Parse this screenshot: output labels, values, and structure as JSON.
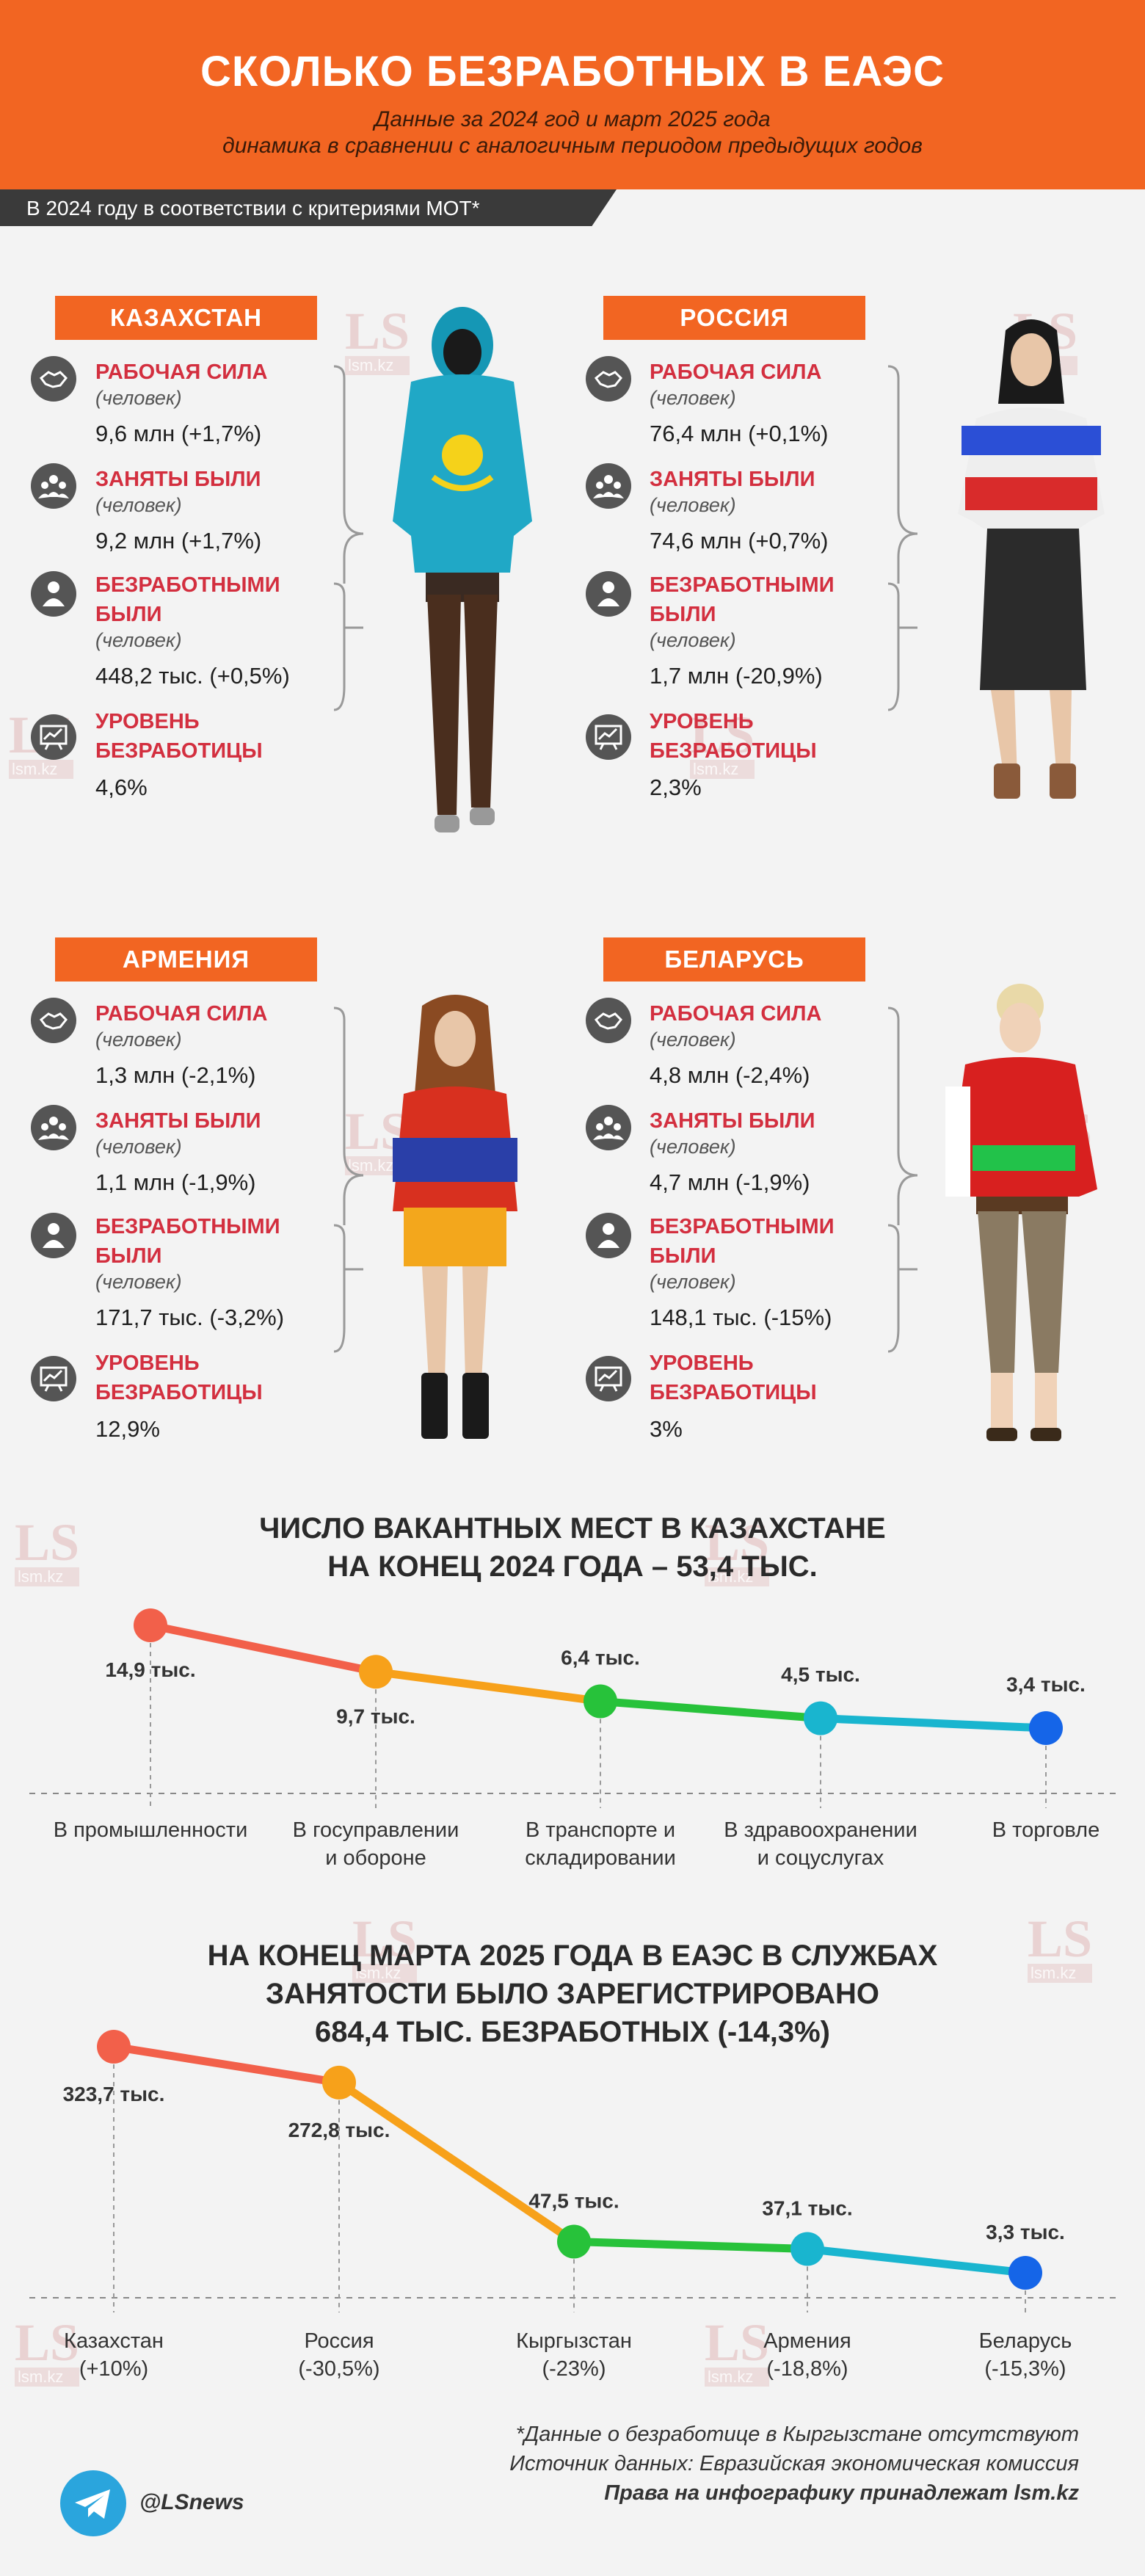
{
  "header": {
    "title": "СКОЛЬКО БЕЗРАБОТНЫХ В ЕАЭС",
    "subtitle1": "Данные за 2024 год и март 2025 года",
    "subtitle2": "динамика в сравнении с аналогичным периодом предыдущих годов"
  },
  "ribbon": "В 2024 году в соответствии с критериями МОТ*",
  "countries": [
    {
      "name": "КАЗАХСТАН",
      "labor_head": "РАБОЧАЯ СИЛА",
      "labor_unit": "(человек)",
      "labor_val": "9,6 млн (+1,7%)",
      "emp_head": "ЗАНЯТЫ БЫЛИ",
      "emp_unit": "(человек)",
      "emp_val": "9,2 млн (+1,7%)",
      "unemp_head": "БЕЗРАБОТНЫМИ\nБЫЛИ",
      "unemp_unit": "(человек)",
      "unemp_val": "448,2 тыс. (+0,5%)",
      "rate_head": "УРОВЕНЬ\nБЕЗРАБОТИЦЫ",
      "rate_val": "4,6%"
    },
    {
      "name": "РОССИЯ",
      "labor_head": "РАБОЧАЯ СИЛА",
      "labor_unit": "(человек)",
      "labor_val": "76,4 млн (+0,1%)",
      "emp_head": "ЗАНЯТЫ БЫЛИ",
      "emp_unit": "(человек)",
      "emp_val": "74,6 млн (+0,7%)",
      "unemp_head": "БЕЗРАБОТНЫМИ\nБЫЛИ",
      "unemp_unit": "(человек)",
      "unemp_val": "1,7 млн (-20,9%)",
      "rate_head": "УРОВЕНЬ\nБЕЗРАБОТИЦЫ",
      "rate_val": "2,3%"
    },
    {
      "name": "АРМЕНИЯ",
      "labor_head": "РАБОЧАЯ СИЛА",
      "labor_unit": "(человек)",
      "labor_val": "1,3 млн (-2,1%)",
      "emp_head": "ЗАНЯТЫ БЫЛИ",
      "emp_unit": "(человек)",
      "emp_val": "1,1 млн (-1,9%)",
      "unemp_head": "БЕЗРАБОТНЫМИ\nБЫЛИ",
      "unemp_unit": "(человек)",
      "unemp_val": "171,7 тыс. (-3,2%)",
      "rate_head": "УРОВЕНЬ\nБЕЗРАБОТИЦЫ",
      "rate_val": "12,9%"
    },
    {
      "name": "БЕЛАРУСЬ",
      "labor_head": "РАБОЧАЯ СИЛА",
      "labor_unit": "(человек)",
      "labor_val": "4,8 млн (-2,4%)",
      "emp_head": "ЗАНЯТЫ БЫЛИ",
      "emp_unit": "(человек)",
      "emp_val": "4,7 млн (-1,9%)",
      "unemp_head": "БЕЗРАБОТНЫМИ\nБЫЛИ",
      "unemp_unit": "(человек)",
      "unemp_val": "148,1 тыс. (-15%)",
      "rate_head": "УРОВЕНЬ\nБЕЗРАБОТИЦЫ",
      "rate_val": "3%"
    }
  ],
  "chart_data": [
    {
      "type": "line",
      "title": "ЧИСЛО ВАКАНТНЫХ МЕСТ В КАЗАХСТАНЕ\nНА КОНЕЦ 2024 ГОДА – 53,4 ТЫС.",
      "categories": [
        "В промышленности",
        "В госуправлении\nи обороне",
        "В транспорте и\nскладировании",
        "В здравоохранении\nи соцуслугах",
        "В торговле"
      ],
      "values": [
        14.9,
        9.7,
        6.4,
        4.5,
        3.4
      ],
      "value_labels": [
        "14,9 тыс.",
        "9,7 тыс.",
        "6,4 тыс.",
        "4,5 тыс.",
        "3,4 тыс."
      ],
      "colors": [
        "#f2604a",
        "#f7a11a",
        "#27c23a",
        "#19b5cf",
        "#1565e8"
      ]
    },
    {
      "type": "line",
      "title": "НА КОНЕЦ МАРТА 2025 ГОДА В ЕАЭС В СЛУЖБАХ\nЗАНЯТОСТИ БЫЛО ЗАРЕГИСТРИРОВАНО\n684,4 ТЫС. БЕЗРАБОТНЫХ (-14,3%)",
      "categories": [
        "Казахстан\n(+10%)",
        "Россия\n(-30,5%)",
        "Кыргызстан\n(-23%)",
        "Армения\n(-18,8%)",
        "Беларусь\n(-15,3%)"
      ],
      "values": [
        323.7,
        272.8,
        47.5,
        37.1,
        3.3
      ],
      "value_labels": [
        "323,7 тыс.",
        "272,8 тыс.",
        "47,5 тыс.",
        "37,1 тыс.",
        "3,3 тыс."
      ],
      "colors": [
        "#f2604a",
        "#f7a11a",
        "#27c23a",
        "#19b5cf",
        "#1565e8"
      ]
    }
  ],
  "footer": {
    "note": "*Данные о безработице в Кыргызстане отсутствуют",
    "source": "Источник данных: Евразийская экономическая комиссия",
    "rights": "Права на инфографику принадлежат lsm.kz",
    "handle": "@LSnews"
  },
  "watermark": {
    "logo": "LS",
    "site": "lsm.kz"
  }
}
